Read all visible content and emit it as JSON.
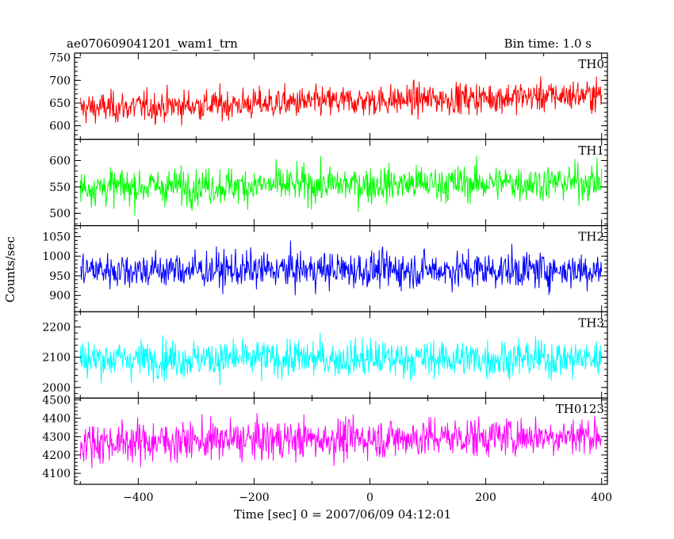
{
  "header": {
    "title": "ae070609041201_wam1_trn",
    "bin_time": "Bin time: 1.0 s"
  },
  "chart_data": {
    "type": "line",
    "title": "ae070609041201_wam1_trn",
    "xlabel": "Time [sec] 0 = 2007/06/09 04:12:01",
    "ylabel": "Counts/sec",
    "xlim": [
      -510,
      410
    ],
    "x_ticks": [
      -400,
      -200,
      0,
      200,
      400
    ],
    "x_tick_labels": [
      "−400",
      "−200",
      "0",
      "200",
      "400"
    ],
    "bin_seconds": 1.0,
    "x_start": -500,
    "x_end": 400,
    "grid": false,
    "panels": [
      {
        "name": "TH0",
        "color": "#ff0000",
        "ylim": [
          570,
          760
        ],
        "y_ticks": [
          600,
          650,
          700,
          750
        ],
        "mean": 655,
        "noise": 22,
        "trend": 15
      },
      {
        "name": "TH1",
        "color": "#00ff00",
        "ylim": [
          477,
          640
        ],
        "y_ticks": [
          500,
          550,
          600
        ],
        "mean": 555,
        "noise": 22,
        "trend": 5
      },
      {
        "name": "TH2",
        "color": "#0000ff",
        "ylim": [
          858,
          1078
        ],
        "y_ticks": [
          900,
          950,
          1000,
          1050
        ],
        "mean": 965,
        "noise": 30,
        "trend": 0
      },
      {
        "name": "TH3",
        "color": "#00ffff",
        "ylim": [
          1965,
          2250
        ],
        "y_ticks": [
          2000,
          2100,
          2200
        ],
        "mean": 2095,
        "noise": 40,
        "trend": 0
      },
      {
        "name": "TH0123",
        "color": "#ff00ff",
        "ylim": [
          4040,
          4510
        ],
        "y_ticks": [
          4100,
          4200,
          4300,
          4400,
          4500
        ],
        "mean": 4290,
        "noise": 70,
        "trend": 20
      }
    ]
  }
}
